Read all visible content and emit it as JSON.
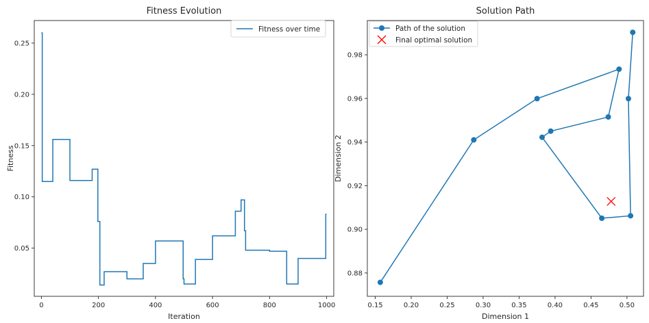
{
  "colors": {
    "line": "#1f77b4",
    "marker_x": "#ff0000",
    "axis": "#262626",
    "background": "#ffffff"
  },
  "chart_data": [
    {
      "type": "line",
      "title": "Fitness Evolution",
      "xlabel": "Iteration",
      "ylabel": "Fitness",
      "xlim": [
        -25,
        1025
      ],
      "ylim": [
        0.003,
        0.272
      ],
      "xticks": [
        0,
        200,
        400,
        600,
        800,
        1000
      ],
      "xtick_labels": [
        "0",
        "200",
        "400",
        "600",
        "800",
        "1000"
      ],
      "yticks": [
        0.05,
        0.1,
        0.15,
        0.2,
        0.25
      ],
      "ytick_labels": [
        "0.05",
        "0.10",
        "0.15",
        "0.20",
        "0.25"
      ],
      "grid": false,
      "legend_position": "top-right",
      "series": [
        {
          "name": "Fitness over time",
          "step": true,
          "points": [
            [
              0,
              0.26
            ],
            [
              3,
              0.26
            ],
            [
              3,
              0.115
            ],
            [
              40,
              0.115
            ],
            [
              40,
              0.156
            ],
            [
              100,
              0.156
            ],
            [
              100,
              0.116
            ],
            [
              178,
              0.116
            ],
            [
              178,
              0.127
            ],
            [
              198,
              0.127
            ],
            [
              198,
              0.076
            ],
            [
              205,
              0.076
            ],
            [
              205,
              0.014
            ],
            [
              220,
              0.014
            ],
            [
              220,
              0.027
            ],
            [
              300,
              0.027
            ],
            [
              300,
              0.02
            ],
            [
              357,
              0.02
            ],
            [
              357,
              0.035
            ],
            [
              400,
              0.035
            ],
            [
              400,
              0.057
            ],
            [
              497,
              0.057
            ],
            [
              497,
              0.02
            ],
            [
              500,
              0.02
            ],
            [
              500,
              0.015
            ],
            [
              540,
              0.015
            ],
            [
              540,
              0.039
            ],
            [
              600,
              0.039
            ],
            [
              600,
              0.062
            ],
            [
              680,
              0.062
            ],
            [
              680,
              0.086
            ],
            [
              700,
              0.086
            ],
            [
              700,
              0.097
            ],
            [
              712,
              0.097
            ],
            [
              712,
              0.067
            ],
            [
              716,
              0.067
            ],
            [
              716,
              0.048
            ],
            [
              800,
              0.048
            ],
            [
              800,
              0.047
            ],
            [
              860,
              0.047
            ],
            [
              860,
              0.015
            ],
            [
              900,
              0.015
            ],
            [
              900,
              0.04
            ],
            [
              997,
              0.04
            ],
            [
              997,
              0.083
            ],
            [
              1000,
              0.083
            ]
          ]
        }
      ]
    },
    {
      "type": "line",
      "title": "Solution Path",
      "xlabel": "Dimension 1",
      "ylabel": "Dimension 2",
      "xlim": [
        0.139,
        0.523
      ],
      "ylim": [
        0.8693,
        0.9957
      ],
      "xticks": [
        0.15,
        0.2,
        0.25,
        0.3,
        0.35,
        0.4,
        0.45,
        0.5
      ],
      "xtick_labels": [
        "0.15",
        "0.20",
        "0.25",
        "0.30",
        "0.35",
        "0.40",
        "0.45",
        "0.50"
      ],
      "yticks": [
        0.88,
        0.9,
        0.92,
        0.94,
        0.96,
        0.98
      ],
      "ytick_labels": [
        "0.88",
        "0.90",
        "0.92",
        "0.94",
        "0.96",
        "0.98"
      ],
      "grid": false,
      "legend_position": "top-left",
      "series": [
        {
          "name": "Path of the solution",
          "marker": "o",
          "x": [
            0.157,
            0.287,
            0.375,
            0.489,
            0.474,
            0.394,
            0.382,
            0.465,
            0.505,
            0.502,
            0.508
          ],
          "y": [
            0.8757,
            0.941,
            0.9599,
            0.9734,
            0.9515,
            0.945,
            0.9422,
            0.9051,
            0.9062,
            0.9599,
            0.9903
          ]
        },
        {
          "name": "Final optimal solution",
          "marker": "x",
          "x": [
            0.478
          ],
          "y": [
            0.9128
          ]
        }
      ]
    }
  ]
}
